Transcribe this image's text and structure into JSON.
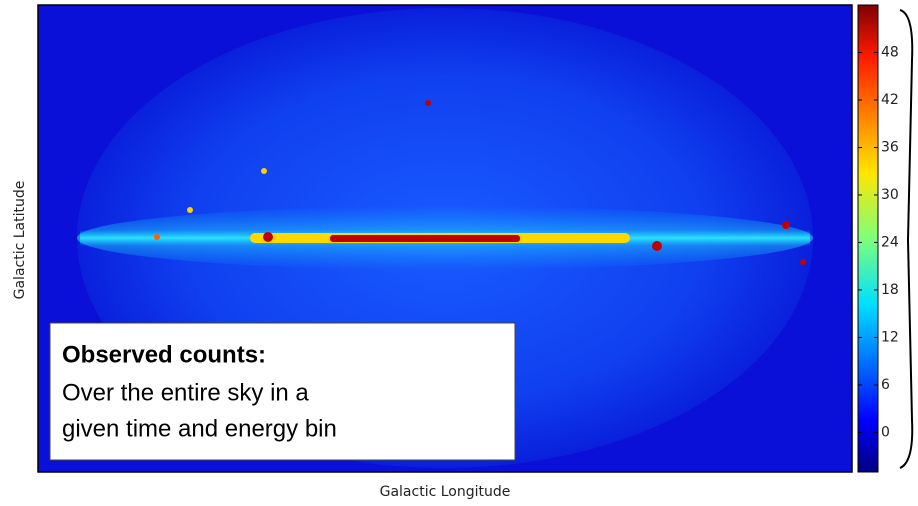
{
  "chart_data": {
    "type": "heatmap",
    "xlabel": "Galactic Longitude",
    "ylabel": "Galactic Latitude",
    "colorbar": {
      "clim": [
        -5,
        54
      ],
      "ticks": [
        0,
        6,
        12,
        18,
        24,
        30,
        36,
        42,
        48
      ]
    },
    "annotation": {
      "title": "Observed counts:",
      "lines": [
        "Over the entire sky in a",
        "given time and energy bin"
      ]
    }
  }
}
